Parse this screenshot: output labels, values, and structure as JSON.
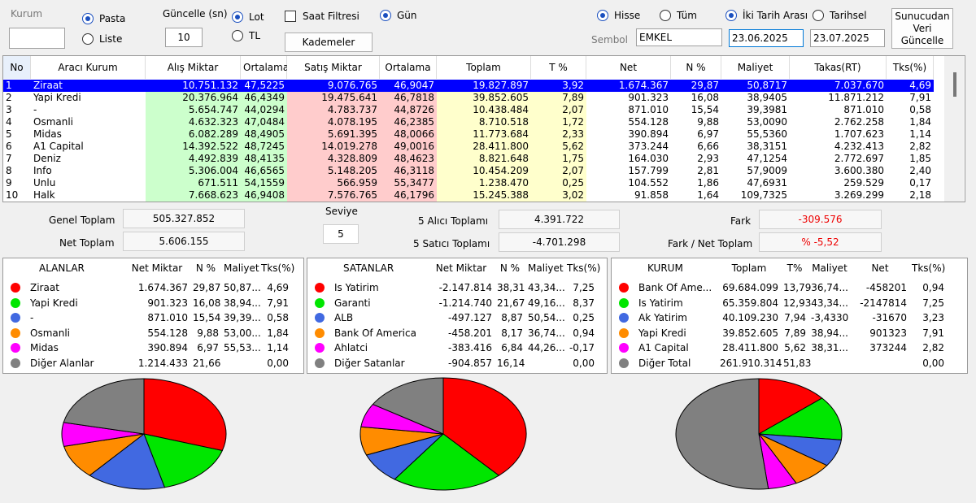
{
  "toolbar": {
    "kurum_label": "Kurum",
    "pasta": "Pasta",
    "liste": "Liste",
    "guncelle_label": "Güncelle (sn)",
    "guncelle_value": "10",
    "lot": "Lot",
    "tl": "TL",
    "saat_filtresi": "Saat Filtresi",
    "kademeler": "Kademeler",
    "gun": "Gün",
    "hisse": "Hisse",
    "tum": "Tüm",
    "iki_tarih": "İki Tarih Arası",
    "tarihsel": "Tarihsel",
    "sembol_label": "Sembol",
    "sembol_value": "EMKEL",
    "date_from": "23.06.2025",
    "date_to": "23.07.2025",
    "server_button": "Sunucudan Veri Güncelle"
  },
  "grid": {
    "columns": [
      "No",
      "Aracı Kurum",
      "Alış Miktar",
      "Ortalama",
      "Satış Miktar",
      "Ortalama",
      "Toplam",
      "T %",
      "Net",
      "N %",
      "Maliyet",
      "Takas(RT)",
      "Tks(%)"
    ],
    "rows": [
      [
        "1",
        "Ziraat",
        "10.751.132",
        "47,5225",
        "9.076.765",
        "46,9047",
        "19.827.897",
        "3,92",
        "1.674.367",
        "29,87",
        "50,8717",
        "7.037.670",
        "4,69"
      ],
      [
        "2",
        "Yapi Kredi",
        "20.376.964",
        "46,4349",
        "19.475.641",
        "46,7818",
        "39.852.605",
        "7,89",
        "901.323",
        "16,08",
        "38,9405",
        "11.871.212",
        "7,91"
      ],
      [
        "3",
        "-",
        "5.654.747",
        "44,0294",
        "4.783.737",
        "44,8726",
        "10.438.484",
        "2,07",
        "871.010",
        "15,54",
        "39,3981",
        "871.010",
        "0,58"
      ],
      [
        "4",
        "Osmanli",
        "4.632.323",
        "47,0484",
        "4.078.195",
        "46,2385",
        "8.710.518",
        "1,72",
        "554.128",
        "9,88",
        "53,0090",
        "2.762.258",
        "1,84"
      ],
      [
        "5",
        "Midas",
        "6.082.289",
        "48,4905",
        "5.691.395",
        "48,0066",
        "11.773.684",
        "2,33",
        "390.894",
        "6,97",
        "55,5360",
        "1.707.623",
        "1,14"
      ],
      [
        "6",
        "A1 Capital",
        "14.392.522",
        "48,7245",
        "14.019.278",
        "49,0016",
        "28.411.800",
        "5,62",
        "373.244",
        "6,66",
        "38,3151",
        "4.232.413",
        "2,82"
      ],
      [
        "7",
        "Deniz",
        "4.492.839",
        "48,4135",
        "4.328.809",
        "48,4623",
        "8.821.648",
        "1,75",
        "164.030",
        "2,93",
        "47,1254",
        "2.772.697",
        "1,85"
      ],
      [
        "8",
        "Info",
        "5.306.004",
        "46,6565",
        "5.148.205",
        "46,3118",
        "10.454.209",
        "2,07",
        "157.799",
        "2,81",
        "57,9009",
        "3.600.380",
        "2,40"
      ],
      [
        "9",
        "Unlu",
        "671.511",
        "54,1559",
        "566.959",
        "55,3477",
        "1.238.470",
        "0,25",
        "104.552",
        "1,86",
        "47,6931",
        "259.529",
        "0,17"
      ],
      [
        "10",
        "Halk",
        "7.668.623",
        "46,9408",
        "7.576.765",
        "46,1796",
        "15.245.388",
        "3,02",
        "91.858",
        "1,64",
        "109,7325",
        "3.269.299",
        "2,18"
      ]
    ]
  },
  "summary": {
    "genel_toplam_label": "Genel Toplam",
    "genel_toplam": "505.327.852",
    "net_toplam_label": "Net Toplam",
    "net_toplam": "5.606.155",
    "seviye_label": "Seviye",
    "seviye": "5",
    "alici_label": "5  Alıcı Toplamı",
    "alici": "4.391.722",
    "satici_label": "5  Satıcı Toplamı",
    "satici": "-4.701.298",
    "fark_label": "Fark",
    "fark": "-309.576",
    "fark_net_label": "Fark / Net Toplam",
    "fark_net": "% -5,52"
  },
  "panels": [
    {
      "columns": [
        "ALANLAR",
        "Net Miktar",
        "N %",
        "Maliyet",
        "Tks(%)"
      ],
      "rows": [
        [
          "Ziraat",
          "1.674.367",
          "29,87",
          "50,87...",
          "4,69"
        ],
        [
          "Yapi Kredi",
          "901.323",
          "16,08",
          "38,94...",
          "7,91"
        ],
        [
          "-",
          "871.010",
          "15,54",
          "39,39...",
          "0,58"
        ],
        [
          "Osmanli",
          "554.128",
          "9,88",
          "53,00...",
          "1,84"
        ],
        [
          "Midas",
          "390.894",
          "6,97",
          "55,53...",
          "1,14"
        ],
        [
          "Diğer Alanlar",
          "1.214.433",
          "21,66",
          null,
          "0,00"
        ]
      ]
    },
    {
      "columns": [
        "SATANLAR",
        "Net Miktar",
        "N %",
        "Maliyet",
        "Tks(%)"
      ],
      "rows": [
        [
          "Is Yatirim",
          "-2.147.814",
          "38,31",
          "43,34...",
          "7,25"
        ],
        [
          "Garanti",
          "-1.214.740",
          "21,67",
          "49,16...",
          "8,37"
        ],
        [
          "ALB",
          "-497.127",
          "8,87",
          "50,54...",
          "0,25"
        ],
        [
          "Bank Of America",
          "-458.201",
          "8,17",
          "36,74...",
          "0,94"
        ],
        [
          "Ahlatci",
          "-383.416",
          "6,84",
          "44,26...",
          "-0,17"
        ],
        [
          "Diğer Satanlar",
          "-904.857",
          "16,14",
          null,
          "0,00"
        ]
      ]
    },
    {
      "columns": [
        "KURUM",
        "Toplam",
        "T%",
        "Maliyet",
        "Net",
        "Tks(%)"
      ],
      "rows": [
        [
          "Bank Of Ame...",
          "69.684.099",
          "13,79",
          "36,74...",
          "-458201",
          "0,94"
        ],
        [
          "Is Yatirim",
          "65.359.804",
          "12,93",
          "43,34...",
          "-2147814",
          "7,25"
        ],
        [
          "Ak Yatirim",
          "40.109.230",
          "7,94",
          "-3,4330",
          "-31670",
          "3,23"
        ],
        [
          "Yapi Kredi",
          "39.852.605",
          "7,89",
          "38,94...",
          "901323",
          "7,91"
        ],
        [
          "A1 Capital",
          "28.411.800",
          "5,62",
          "38,31...",
          "373244",
          "2,82"
        ],
        [
          "Diğer Total",
          "261.910.314",
          "51,83",
          null,
          null,
          "0,00"
        ]
      ]
    }
  ],
  "pies": [
    {
      "type": "pie",
      "values": [
        29.87,
        16.08,
        15.54,
        9.88,
        6.97,
        21.66
      ],
      "colors": [
        "#ff0000",
        "#00e600",
        "#4169e1",
        "#ff8c00",
        "#ff00ff",
        "#808080"
      ]
    },
    {
      "type": "pie",
      "values": [
        38.31,
        21.67,
        8.87,
        8.17,
        6.84,
        16.14
      ],
      "colors": [
        "#ff0000",
        "#00e600",
        "#4169e1",
        "#ff8c00",
        "#ff00ff",
        "#808080"
      ]
    },
    {
      "type": "pie",
      "values": [
        13.79,
        12.93,
        7.94,
        7.89,
        5.62,
        51.83
      ],
      "colors": [
        "#ff0000",
        "#00e600",
        "#4169e1",
        "#ff8c00",
        "#ff00ff",
        "#808080"
      ]
    }
  ]
}
